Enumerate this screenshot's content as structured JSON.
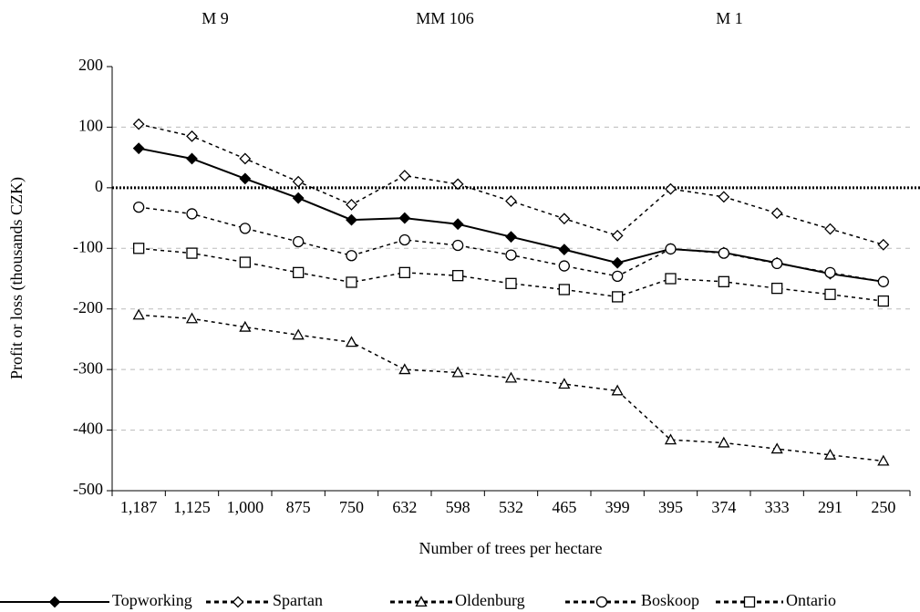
{
  "chart_data": {
    "type": "line",
    "annotations": [
      "M 9",
      "MM 106",
      "M 1"
    ],
    "x_label": "Number of trees per hectare",
    "y_label": "Profit or loss (thousands CZK)",
    "categories": [
      "1,187",
      "1,125",
      "1,000",
      "875",
      "750",
      "632",
      "598",
      "532",
      "465",
      "399",
      "395",
      "374",
      "333",
      "291",
      "250"
    ],
    "ylim": [
      -500,
      200
    ],
    "yticks": [
      -500,
      -400,
      -300,
      -200,
      -100,
      0,
      100,
      200
    ],
    "grid": true,
    "legend": "bottom",
    "series": [
      {
        "name": "Topworking",
        "color": "#000000",
        "line": "solid",
        "marker": "diamond",
        "filled": true,
        "values": [
          65,
          48,
          15,
          -17,
          -53,
          -50,
          -60,
          -81,
          -102,
          -124,
          -101,
          -107,
          -124,
          -142,
          -155
        ]
      },
      {
        "name": "Spartan",
        "color": "#000000",
        "line": "dashed",
        "marker": "diamond",
        "filled": false,
        "values": [
          105,
          85,
          48,
          10,
          -28,
          20,
          6,
          -22,
          -51,
          -79,
          -2,
          -15,
          -42,
          -68,
          -94
        ]
      },
      {
        "name": "Oldenburg",
        "color": "#000000",
        "line": "dashed",
        "marker": "triangle",
        "filled": false,
        "values": [
          -210,
          -216,
          -230,
          -243,
          -255,
          -300,
          -305,
          -314,
          -324,
          -335,
          -416,
          -421,
          -431,
          -441,
          -451
        ]
      },
      {
        "name": "Boskoop",
        "color": "#000000",
        "line": "dashed",
        "marker": "circle",
        "filled": false,
        "values": [
          -32,
          -43,
          -67,
          -89,
          -112,
          -86,
          -95,
          -111,
          -129,
          -146,
          -101,
          -108,
          -125,
          -140,
          -155
        ]
      },
      {
        "name": "Ontario",
        "color": "#000000",
        "line": "dashed",
        "marker": "square",
        "filled": false,
        "values": [
          -100,
          -108,
          -123,
          -140,
          -156,
          -140,
          -145,
          -158,
          -168,
          -180,
          -150,
          -155,
          -166,
          -176,
          -187
        ]
      }
    ]
  }
}
